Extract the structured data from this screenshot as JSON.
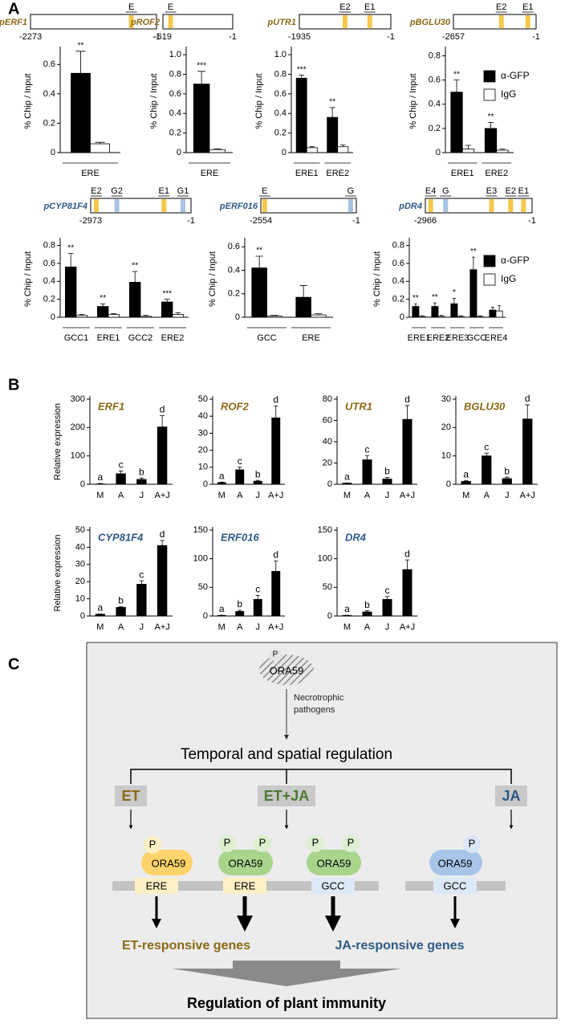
{
  "panel_labels": [
    "A",
    "B",
    "C"
  ],
  "element_colors": {
    "ERE": "#f5c84c",
    "GCC": "#a8c3e3"
  },
  "chart_data": [
    {
      "type": "bar",
      "ylabel": "% Chip / Input",
      "promoter": {
        "name": "pERF1",
        "name_color": "#8b6914",
        "start": -2273,
        "end": -1,
        "elements": [
          {
            "label": "E",
            "pos": -455,
            "kind": "ERE"
          }
        ]
      },
      "categories": [
        "ERE"
      ],
      "series": [
        {
          "color": "#000000",
          "values": [
            0.54
          ],
          "errors": [
            0.15
          ]
        },
        {
          "color": "#ffffff",
          "values": [
            0.06
          ],
          "errors": [
            0.01
          ]
        }
      ],
      "annotations": [
        "**"
      ],
      "ylim": [
        0,
        0.7
      ],
      "yticks": [
        0,
        0.2,
        0.4,
        0.6
      ]
    },
    {
      "type": "bar",
      "ylabel": "% Chip / Input",
      "promoter": {
        "name": "pROF2",
        "name_color": "#8b6914",
        "start": -619,
        "end": -1,
        "elements": [
          {
            "label": "E",
            "pos": -551,
            "kind": "ERE"
          }
        ]
      },
      "categories": [
        "ERE"
      ],
      "series": [
        {
          "color": "#000000",
          "values": [
            0.7
          ],
          "errors": [
            0.13
          ]
        },
        {
          "color": "#ffffff",
          "values": [
            0.03
          ],
          "errors": [
            0.01
          ]
        }
      ],
      "annotations": [
        "***"
      ],
      "ylim": [
        0,
        1.05
      ],
      "yticks": [
        0,
        0.2,
        0.4,
        0.6,
        0.8,
        {
          "value": 1,
          "label": "1.0"
        }
      ]
    },
    {
      "type": "bar",
      "ylabel": "% Chip / Input",
      "promoter": {
        "name": "pUTR1",
        "name_color": "#8b6914",
        "start": -1935,
        "end": -1,
        "elements": [
          {
            "label": "E2",
            "pos": -968,
            "kind": "ERE"
          },
          {
            "label": "E1",
            "pos": -446,
            "kind": "ERE"
          }
        ]
      },
      "categories": [
        "ERE1",
        "ERE2"
      ],
      "series": [
        {
          "color": "#000000",
          "values": [
            0.76,
            0.36
          ],
          "errors": [
            0.03,
            0.1
          ]
        },
        {
          "color": "#ffffff",
          "values": [
            0.05,
            0.06
          ],
          "errors": [
            0.01,
            0.02
          ]
        }
      ],
      "annotations": [
        "***",
        "**"
      ],
      "ylim": [
        0,
        1.05
      ],
      "yticks": [
        0,
        0.2,
        0.4,
        0.6,
        0.8,
        {
          "value": 1,
          "label": "1.0"
        }
      ]
    },
    {
      "type": "bar",
      "ylabel": "% Chip / Input",
      "promoter": {
        "name": "pBGLU30",
        "name_color": "#8b6914",
        "start": -2657,
        "end": -1,
        "elements": [
          {
            "label": "E2",
            "pos": -1116,
            "kind": "ERE"
          },
          {
            "label": "E1",
            "pos": -266,
            "kind": "ERE"
          }
        ]
      },
      "categories": [
        "ERE1",
        "ERE2"
      ],
      "series": [
        {
          "name": "α-GFP",
          "color": "#000000",
          "values": [
            0.5,
            0.2
          ],
          "errors": [
            0.1,
            0.05
          ]
        },
        {
          "name": "IgG",
          "color": "#ffffff",
          "values": [
            0.03,
            0.02
          ],
          "errors": [
            0.03,
            0.01
          ]
        }
      ],
      "annotations": [
        "**",
        "**"
      ],
      "ylim": [
        0,
        0.85
      ],
      "yticks": [
        0,
        0.2,
        0.4,
        0.6,
        0.8
      ],
      "legend": "right"
    },
    {
      "type": "bar",
      "ylabel": "% Chip / Input",
      "promoter": {
        "name": "pCYP81F4",
        "name_color": "#2e5a87",
        "start": -2973,
        "end": -1,
        "elements": [
          {
            "label": "E2",
            "pos": -2807,
            "kind": "ERE"
          },
          {
            "label": "G2",
            "pos": -2197,
            "kind": "GCC"
          },
          {
            "label": "E1",
            "pos": -803,
            "kind": "ERE"
          },
          {
            "label": "G1",
            "pos": -239,
            "kind": "GCC"
          }
        ]
      },
      "categories": [
        "GCC1",
        "ERE1",
        "GCC2",
        "ERE2"
      ],
      "series": [
        {
          "color": "#000000",
          "values": [
            0.56,
            0.12,
            0.39,
            0.17
          ],
          "errors": [
            0.15,
            0.03,
            0.12,
            0.03
          ]
        },
        {
          "color": "#ffffff",
          "values": [
            0.02,
            0.03,
            0.01,
            0.03
          ],
          "errors": [
            0.01,
            0.01,
            0.01,
            0.02
          ]
        }
      ],
      "annotations": [
        "**",
        "**",
        "**",
        "***"
      ],
      "ylim": [
        0,
        0.85
      ],
      "yticks": [
        0,
        0.2,
        0.4,
        0.6,
        0.8
      ]
    },
    {
      "type": "bar",
      "ylabel": "% Chip / Input",
      "promoter": {
        "name": "pERF016",
        "name_color": "#2e5a87",
        "start": -2554,
        "end": -1,
        "elements": [
          {
            "label": "E",
            "pos": -2452,
            "kind": "ERE"
          },
          {
            "label": "G",
            "pos": -154,
            "kind": "GCC"
          }
        ]
      },
      "categories": [
        "GCC",
        "ERE"
      ],
      "series": [
        {
          "color": "#000000",
          "values": [
            0.42,
            0.17
          ],
          "errors": [
            0.1,
            0.1
          ]
        },
        {
          "color": "#ffffff",
          "values": [
            0.01,
            0.02
          ],
          "errors": [
            0.005,
            0.01
          ]
        }
      ],
      "annotations": [
        "**",
        null
      ],
      "ylim": [
        0,
        0.65
      ],
      "yticks": [
        0,
        0.2,
        0.4,
        0.6
      ]
    },
    {
      "type": "bar",
      "ylabel": "% Chip / Input",
      "promoter": {
        "name": "pDR4",
        "name_color": "#2e5a87",
        "start": -2966,
        "end": -1,
        "elements": [
          {
            "label": "E4",
            "pos": -2818,
            "kind": "ERE"
          },
          {
            "label": "G",
            "pos": -2403,
            "kind": "GCC"
          },
          {
            "label": "E3",
            "pos": -1127,
            "kind": "ERE"
          },
          {
            "label": "E2",
            "pos": -596,
            "kind": "ERE"
          },
          {
            "label": "E1",
            "pos": -238,
            "kind": "ERE"
          }
        ]
      },
      "categories": [
        "ERE1",
        "ERE2",
        "ERE3",
        "GCC",
        "ERE4"
      ],
      "series": [
        {
          "name": "α-GFP",
          "color": "#000000",
          "values": [
            0.12,
            0.12,
            0.15,
            0.53,
            0.08
          ],
          "errors": [
            0.03,
            0.04,
            0.06,
            0.14,
            0.03
          ]
        },
        {
          "name": "IgG",
          "color": "#ffffff",
          "values": [
            0.01,
            0.01,
            0.01,
            0.01,
            0.07
          ],
          "errors": [
            0.005,
            0.01,
            0.005,
            0.005,
            0.06
          ]
        }
      ],
      "annotations": [
        "**",
        "**",
        "*",
        "**",
        null
      ],
      "ylim": [
        0,
        0.85
      ],
      "yticks": [
        0,
        0.2,
        0.4,
        0.6,
        0.8
      ],
      "legend": "right"
    },
    {
      "type": "bar",
      "title": "ERF1",
      "title_color": "#8b6914",
      "ylabel": "Relative expression",
      "categories": [
        "M",
        "A",
        "J",
        "A+J"
      ],
      "series": [
        {
          "color": "#000000",
          "values": [
            1,
            37,
            17,
            202
          ],
          "errors": [
            2,
            10,
            5,
            40
          ]
        }
      ],
      "annotations": [
        "a",
        "c",
        "b",
        "d"
      ],
      "ylim": [
        0,
        300
      ],
      "yticks": [
        0,
        100,
        200,
        300
      ]
    },
    {
      "type": "bar",
      "title": "ROF2",
      "title_color": "#8b6914",
      "categories": [
        "M",
        "A",
        "J",
        "A+J"
      ],
      "series": [
        {
          "color": "#000000",
          "values": [
            1,
            8.5,
            1.8,
            39
          ],
          "errors": [
            0.3,
            1.5,
            0.5,
            7
          ]
        }
      ],
      "annotations": [
        "a",
        "c",
        "b",
        "d"
      ],
      "ylim": [
        0,
        50
      ],
      "yticks": [
        0,
        10,
        20,
        30,
        40,
        50
      ]
    },
    {
      "type": "bar",
      "title": "UTR1",
      "title_color": "#8b6914",
      "categories": [
        "M",
        "A",
        "J",
        "A+J"
      ],
      "series": [
        {
          "color": "#000000",
          "values": [
            1,
            23,
            5,
            61
          ],
          "errors": [
            0.3,
            4,
            1.5,
            13
          ]
        }
      ],
      "annotations": [
        "a",
        "c",
        "b",
        "d"
      ],
      "ylim": [
        0,
        80
      ],
      "yticks": [
        0,
        20,
        40,
        60,
        80
      ]
    },
    {
      "type": "bar",
      "title": "BGLU30",
      "title_color": "#8b6914",
      "categories": [
        "M",
        "A",
        "J",
        "A+J"
      ],
      "series": [
        {
          "color": "#000000",
          "values": [
            1,
            10,
            2,
            23
          ],
          "errors": [
            0.3,
            1,
            0.5,
            5
          ]
        }
      ],
      "annotations": [
        "a",
        "c",
        "b",
        "d"
      ],
      "ylim": [
        0,
        30
      ],
      "yticks": [
        0,
        10,
        20,
        30
      ]
    },
    {
      "type": "bar",
      "title": "CYP81F4",
      "title_color": "#2e5a87",
      "ylabel": "Relative expression",
      "categories": [
        "M",
        "A",
        "J",
        "A+J"
      ],
      "series": [
        {
          "color": "#000000",
          "values": [
            1,
            5,
            18.5,
            41
          ],
          "errors": [
            0.2,
            0.5,
            2,
            3
          ]
        }
      ],
      "annotations": [
        "a",
        "b",
        "c",
        "d"
      ],
      "ylim": [
        0,
        50
      ],
      "yticks": [
        0,
        10,
        20,
        30,
        40,
        50
      ]
    },
    {
      "type": "bar",
      "title": "ERF016",
      "title_color": "#2e5a87",
      "categories": [
        "M",
        "A",
        "J",
        "A+J"
      ],
      "series": [
        {
          "color": "#000000",
          "values": [
            1,
            8,
            29,
            78
          ],
          "errors": [
            0.3,
            2,
            7,
            18
          ]
        }
      ],
      "annotations": [
        "a",
        "b",
        "c",
        "d"
      ],
      "ylim": [
        0,
        150
      ],
      "yticks": [
        0,
        50,
        100,
        150
      ]
    },
    {
      "type": "bar",
      "title": "DR4",
      "title_color": "#2e5a87",
      "categories": [
        "M",
        "A",
        "J",
        "A+J"
      ],
      "series": [
        {
          "color": "#000000",
          "values": [
            1,
            7,
            29,
            81
          ],
          "errors": [
            0.3,
            2,
            5,
            17
          ]
        }
      ],
      "annotations": [
        "a",
        "b",
        "c",
        "d"
      ],
      "ylim": [
        0,
        150
      ],
      "yticks": [
        0,
        50,
        100,
        150
      ]
    }
  ],
  "diagram": {
    "top_phospho": "P",
    "top_protein": "ORA59",
    "stimulus": "Necrotrophic pathogens",
    "regulation": "Temporal and spatial regulation",
    "signals": [
      "ET",
      "ET+JA",
      "JA"
    ],
    "complexes": [
      {
        "phospho": [
          "P"
        ],
        "protein": "ORA59",
        "element": "ERE"
      },
      {
        "phospho": [
          "P",
          "P"
        ],
        "protein": "ORA59",
        "element": "ERE"
      },
      {
        "phospho": [
          "P",
          "P"
        ],
        "protein": "ORA59",
        "element": "GCC"
      },
      {
        "phospho": [
          "P"
        ],
        "protein": "ORA59",
        "element": "GCC"
      }
    ],
    "outputs": [
      "ET-responsive genes",
      "JA-responsive genes"
    ],
    "final": "Regulation of plant immunity"
  }
}
